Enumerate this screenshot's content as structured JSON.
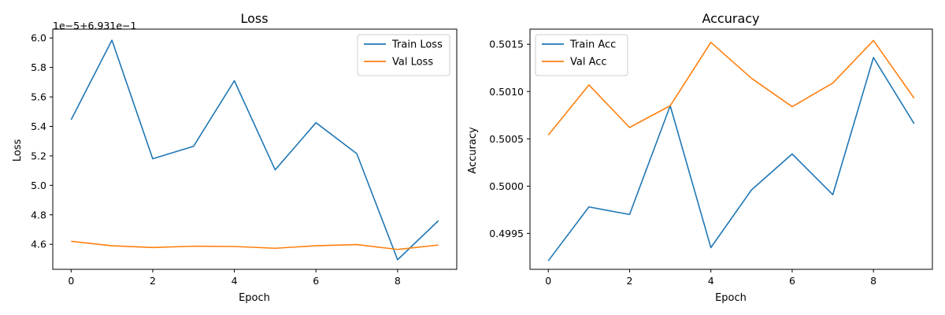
{
  "chart_data": [
    {
      "type": "line",
      "title": "Loss",
      "xlabel": "Epoch",
      "ylabel": "Loss",
      "offset_text": "1e−5+6.931e−1",
      "x": [
        0,
        1,
        2,
        3,
        4,
        5,
        6,
        7,
        8,
        9
      ],
      "xticks": [
        0,
        2,
        4,
        6,
        8
      ],
      "xlim": [
        -0.45,
        9.45
      ],
      "yticks": [
        4.6,
        4.8,
        5.0,
        5.2,
        5.4,
        5.6,
        5.8,
        6.0
      ],
      "ytick_labels": [
        "4.6",
        "4.8",
        "5.0",
        "5.2",
        "5.4",
        "5.6",
        "5.8",
        "6.0"
      ],
      "ylim": [
        4.43,
        6.06
      ],
      "legend_position": "top-right",
      "grid": false,
      "series": [
        {
          "name": "Train Loss",
          "color": "#1f77b4",
          "values": [
            5.445,
            5.985,
            5.18,
            5.265,
            5.71,
            5.105,
            5.425,
            5.215,
            4.495,
            4.76
          ]
        },
        {
          "name": "Val Loss",
          "color": "#ff7f0e",
          "values": [
            4.62,
            4.59,
            4.578,
            4.587,
            4.585,
            4.573,
            4.59,
            4.598,
            4.565,
            4.595
          ]
        }
      ]
    },
    {
      "type": "line",
      "title": "Accuracy",
      "xlabel": "Epoch",
      "ylabel": "Accuracy",
      "x": [
        0,
        1,
        2,
        3,
        4,
        5,
        6,
        7,
        8,
        9
      ],
      "xticks": [
        0,
        2,
        4,
        6,
        8
      ],
      "xlim": [
        -0.45,
        9.45
      ],
      "yticks": [
        0.4995,
        0.5,
        0.5005,
        0.501,
        0.5015
      ],
      "ytick_labels": [
        "0.4995",
        "0.5000",
        "0.5005",
        "0.5010",
        "0.5015"
      ],
      "ylim": [
        0.49912,
        0.50166
      ],
      "legend_position": "top-left",
      "grid": false,
      "series": [
        {
          "name": "Train Acc",
          "color": "#1f77b4",
          "values": [
            0.49921,
            0.49978,
            0.4997,
            0.50085,
            0.49935,
            0.49996,
            0.50034,
            0.49991,
            0.50136,
            0.50066
          ]
        },
        {
          "name": "Val Acc",
          "color": "#ff7f0e",
          "values": [
            0.50054,
            0.50107,
            0.50062,
            0.50085,
            0.50152,
            0.50114,
            0.50084,
            0.50109,
            0.50154,
            0.50093
          ]
        }
      ]
    }
  ]
}
